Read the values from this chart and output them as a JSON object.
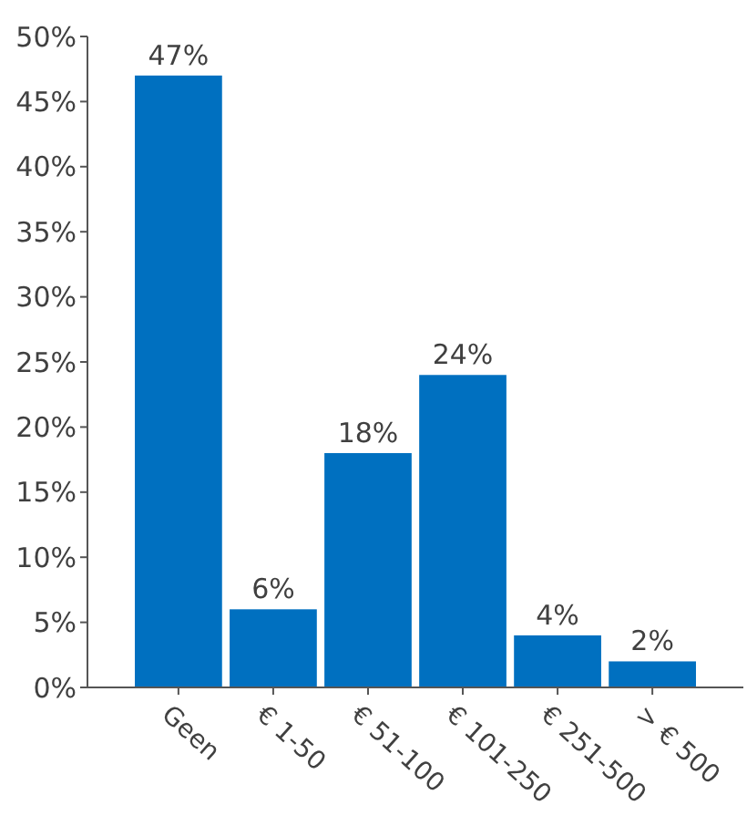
{
  "chart_data": {
    "type": "bar",
    "categories": [
      "Geen",
      "€ 1-50",
      "€ 51-100",
      "€ 101-250",
      "€ 251-500",
      "> € 500"
    ],
    "values": [
      47,
      6,
      18,
      24,
      4,
      2
    ],
    "value_labels": [
      "47%",
      "6%",
      "18%",
      "24%",
      "4%",
      "2%"
    ],
    "color": "#0070c0",
    "ylim": [
      0,
      50
    ],
    "yticks": [
      {
        "value": 0,
        "label": "0%"
      },
      {
        "value": 5,
        "label": "5%"
      },
      {
        "value": 10,
        "label": "10%"
      },
      {
        "value": 15,
        "label": "15%"
      },
      {
        "value": 20,
        "label": "20%"
      },
      {
        "value": 25,
        "label": "25%"
      },
      {
        "value": 30,
        "label": "30%"
      },
      {
        "value": 35,
        "label": "35%"
      },
      {
        "value": 40,
        "label": "40%"
      },
      {
        "value": 45,
        "label": "45%"
      },
      {
        "value": 50,
        "label": "50%"
      }
    ],
    "grid": false
  }
}
